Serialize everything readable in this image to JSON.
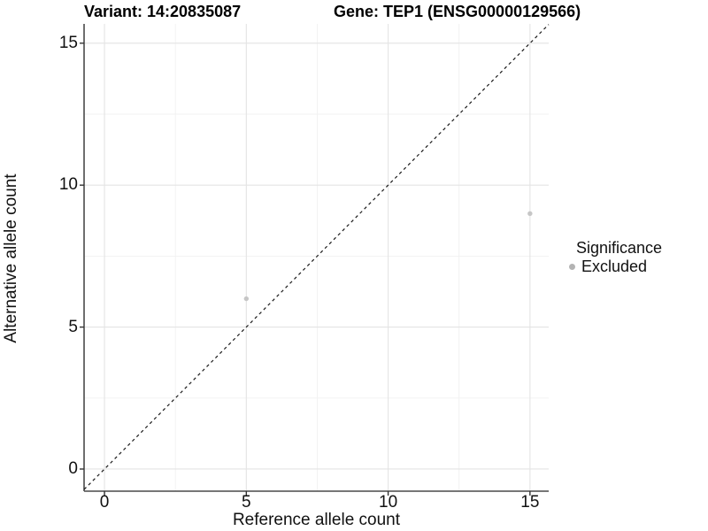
{
  "titles": {
    "variant": "Variant: 14:20835087",
    "gene": "Gene: TEP1 (ENSG00000129566)"
  },
  "chart_data": {
    "type": "scatter",
    "title_left": "Variant: 14:20835087",
    "title_right": "Gene: TEP1 (ENSG00000129566)",
    "xlabel": "Reference allele count",
    "ylabel": "Alternative allele count",
    "xlim": [
      -0.72,
      15.66
    ],
    "ylim": [
      -0.78,
      15.68
    ],
    "x_ticks": [
      0,
      5,
      10,
      15
    ],
    "y_ticks": [
      0,
      5,
      10,
      15
    ],
    "x_minor_ticks": [
      2.5,
      7.5,
      12.5
    ],
    "y_minor_ticks": [
      2.5,
      7.5,
      12.5
    ],
    "grid": true,
    "series": [
      {
        "name": "Excluded",
        "color": "#c6c6c6",
        "points": [
          {
            "x": 5,
            "y": 6
          },
          {
            "x": 15,
            "y": 9
          }
        ]
      }
    ],
    "reference_line": {
      "style": "dashed",
      "color": "#1a1a1a",
      "from": {
        "x": -0.72,
        "y": -0.72
      },
      "to": {
        "x": 15.66,
        "y": 15.66
      }
    },
    "legend": {
      "title": "Significance",
      "position": "right",
      "items": [
        {
          "label": "Excluded",
          "color": "#b3b3b3",
          "marker": "circle"
        }
      ]
    }
  },
  "colors": {
    "background": "#ffffff",
    "grid_major": "#e4e4e4",
    "grid_minor": "#f1f1f1",
    "axis_line": "#4a4a4a",
    "tick_mark": "#333333",
    "point": "#c6c6c6",
    "legend_marker": "#b3b3b3",
    "reference_line": "#1a1a1a",
    "text": "#000000"
  }
}
